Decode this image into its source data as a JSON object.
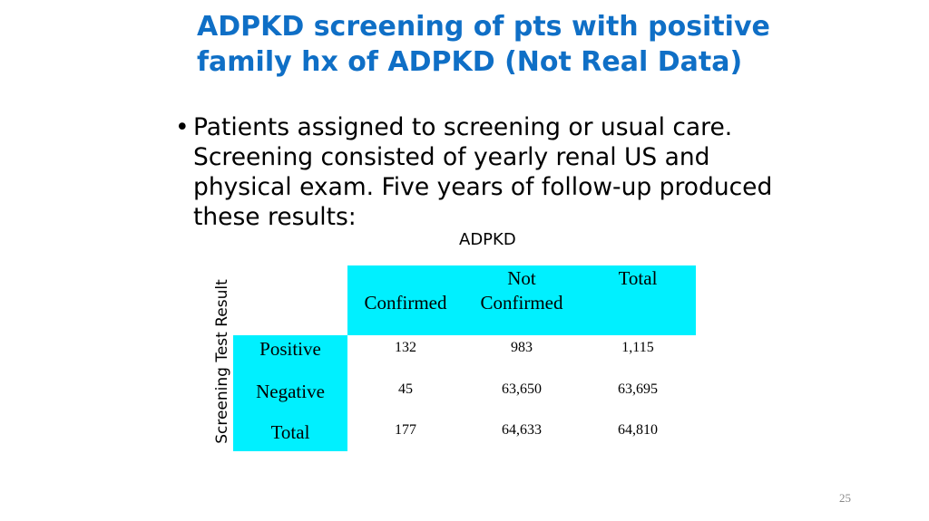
{
  "slide": {
    "title": "ADPKD screening of pts with positive family hx of ADPKD (Not Real Data)",
    "bullet": "Patients assigned to screening or usual care. Screening consisted of yearly renal US and physical exam.  Five years of follow-up produced these results:",
    "page_number": "25"
  },
  "table": {
    "column_group_label": "ADPKD",
    "row_group_label": "Screening Test Result",
    "column_headers": {
      "confirmed": "Confirmed",
      "not_line1": "Not",
      "not_line2": "Confirmed",
      "total": "Total"
    },
    "rows": [
      {
        "label": "Positive",
        "confirmed": "132",
        "not_confirmed": "983",
        "total": "1,115"
      },
      {
        "label": "Negative",
        "confirmed": "45",
        "not_confirmed": "63,650",
        "total": "63,695"
      },
      {
        "label": "Total",
        "confirmed": "177",
        "not_confirmed": "64,633",
        "total": "64,810"
      }
    ],
    "header_color": "#00f0ff"
  }
}
